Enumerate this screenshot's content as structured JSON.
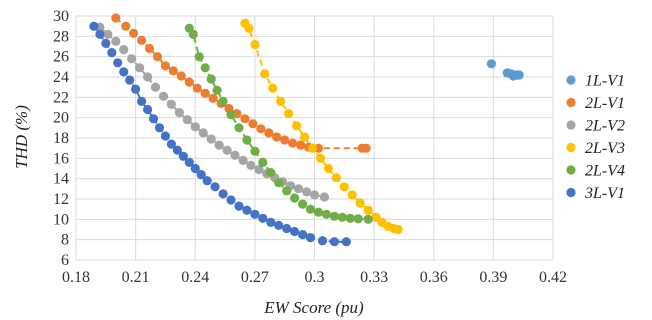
{
  "chart_data": {
    "type": "scatter",
    "title": "",
    "xlabel": "EW Score (pu)",
    "ylabel": "THD (%)",
    "xlim": [
      0.18,
      0.42
    ],
    "ylim": [
      6,
      30
    ],
    "xticks": [
      "0.18",
      "0.21",
      "0.24",
      "0.27",
      "0.3",
      "0.33",
      "0.36",
      "0.39",
      "0.42"
    ],
    "yticks": [
      "6",
      "8",
      "10",
      "12",
      "14",
      "16",
      "18",
      "20",
      "22",
      "24",
      "26",
      "28",
      "30"
    ],
    "grid": true,
    "legend_position": "right",
    "series": [
      {
        "name": "1L-V1",
        "color": "#5B9BD5",
        "trend": false,
        "points": [
          [
            0.389,
            25.3
          ],
          [
            0.397,
            24.4
          ],
          [
            0.399,
            24.3
          ],
          [
            0.401,
            24.2
          ],
          [
            0.402,
            24.2
          ],
          [
            0.403,
            24.2
          ],
          [
            0.4,
            24.1
          ]
        ]
      },
      {
        "name": "2L-V1",
        "color": "#ED7D31",
        "trend": true,
        "points": [
          [
            0.2,
            29.8
          ],
          [
            0.205,
            29.0
          ],
          [
            0.209,
            28.3
          ],
          [
            0.213,
            27.6
          ],
          [
            0.217,
            26.8
          ],
          [
            0.221,
            26.0
          ],
          [
            0.225,
            25.1
          ],
          [
            0.229,
            24.6
          ],
          [
            0.233,
            24.1
          ],
          [
            0.237,
            23.5
          ],
          [
            0.241,
            22.9
          ],
          [
            0.245,
            22.4
          ],
          [
            0.249,
            21.9
          ],
          [
            0.253,
            21.4
          ],
          [
            0.257,
            20.9
          ],
          [
            0.261,
            20.4
          ],
          [
            0.265,
            19.9
          ],
          [
            0.269,
            19.4
          ],
          [
            0.273,
            18.9
          ],
          [
            0.277,
            18.5
          ],
          [
            0.281,
            18.1
          ],
          [
            0.285,
            17.8
          ],
          [
            0.289,
            17.5
          ],
          [
            0.293,
            17.3
          ],
          [
            0.297,
            17.1
          ],
          [
            0.302,
            17.0
          ],
          [
            0.324,
            17.0
          ],
          [
            0.326,
            17.0
          ]
        ]
      },
      {
        "name": "2L-V2",
        "color": "#A5A5A5",
        "trend": true,
        "points": [
          [
            0.192,
            28.9
          ],
          [
            0.196,
            28.2
          ],
          [
            0.2,
            27.5
          ],
          [
            0.204,
            26.7
          ],
          [
            0.208,
            25.8
          ],
          [
            0.212,
            24.9
          ],
          [
            0.216,
            24.0
          ],
          [
            0.22,
            23.0
          ],
          [
            0.224,
            22.1
          ],
          [
            0.228,
            21.3
          ],
          [
            0.232,
            20.5
          ],
          [
            0.236,
            19.8
          ],
          [
            0.24,
            19.1
          ],
          [
            0.244,
            18.5
          ],
          [
            0.248,
            17.9
          ],
          [
            0.252,
            17.3
          ],
          [
            0.256,
            16.8
          ],
          [
            0.26,
            16.3
          ],
          [
            0.264,
            15.8
          ],
          [
            0.268,
            15.3
          ],
          [
            0.272,
            14.9
          ],
          [
            0.276,
            14.5
          ],
          [
            0.28,
            14.1
          ],
          [
            0.284,
            13.7
          ],
          [
            0.288,
            13.3
          ],
          [
            0.292,
            13.0
          ],
          [
            0.296,
            12.7
          ],
          [
            0.3,
            12.4
          ],
          [
            0.305,
            12.2
          ]
        ]
      },
      {
        "name": "2L-V3",
        "color": "#FFC000",
        "trend": true,
        "points": [
          [
            0.265,
            29.3
          ],
          [
            0.267,
            28.8
          ],
          [
            0.27,
            27.2
          ],
          [
            0.275,
            24.3
          ],
          [
            0.279,
            22.9
          ],
          [
            0.283,
            21.6
          ],
          [
            0.287,
            20.4
          ],
          [
            0.291,
            19.2
          ],
          [
            0.295,
            18.1
          ],
          [
            0.299,
            17.0
          ],
          [
            0.303,
            16.0
          ],
          [
            0.307,
            15.0
          ],
          [
            0.311,
            14.1
          ],
          [
            0.315,
            13.2
          ],
          [
            0.319,
            12.4
          ],
          [
            0.323,
            11.6
          ],
          [
            0.327,
            10.9
          ],
          [
            0.331,
            10.2
          ],
          [
            0.334,
            9.7
          ],
          [
            0.337,
            9.3
          ],
          [
            0.34,
            9.1
          ],
          [
            0.342,
            9.0
          ]
        ]
      },
      {
        "name": "2L-V4",
        "color": "#70AD47",
        "trend": true,
        "points": [
          [
            0.237,
            28.8
          ],
          [
            0.239,
            28.2
          ],
          [
            0.242,
            26.0
          ],
          [
            0.245,
            24.9
          ],
          [
            0.248,
            23.8
          ],
          [
            0.251,
            22.7
          ],
          [
            0.254,
            21.6
          ],
          [
            0.258,
            20.3
          ],
          [
            0.262,
            19.0
          ],
          [
            0.266,
            17.8
          ],
          [
            0.27,
            16.7
          ],
          [
            0.274,
            15.6
          ],
          [
            0.278,
            14.6
          ],
          [
            0.282,
            13.6
          ],
          [
            0.286,
            12.8
          ],
          [
            0.29,
            12.1
          ],
          [
            0.294,
            11.5
          ],
          [
            0.298,
            11.0
          ],
          [
            0.302,
            10.7
          ],
          [
            0.306,
            10.5
          ],
          [
            0.31,
            10.3
          ],
          [
            0.314,
            10.2
          ],
          [
            0.318,
            10.1
          ],
          [
            0.322,
            10.05
          ],
          [
            0.327,
            10.0
          ]
        ]
      },
      {
        "name": "3L-V1",
        "color": "#4472C4",
        "trend": true,
        "points": [
          [
            0.189,
            29.0
          ],
          [
            0.192,
            28.2
          ],
          [
            0.195,
            27.3
          ],
          [
            0.198,
            26.4
          ],
          [
            0.201,
            25.4
          ],
          [
            0.204,
            24.5
          ],
          [
            0.207,
            23.7
          ],
          [
            0.21,
            22.8
          ],
          [
            0.213,
            21.6
          ],
          [
            0.216,
            20.8
          ],
          [
            0.219,
            19.9
          ],
          [
            0.222,
            19.0
          ],
          [
            0.225,
            18.2
          ],
          [
            0.228,
            17.4
          ],
          [
            0.231,
            16.8
          ],
          [
            0.234,
            16.2
          ],
          [
            0.237,
            15.6
          ],
          [
            0.24,
            15.0
          ],
          [
            0.243,
            14.4
          ],
          [
            0.246,
            13.8
          ],
          [
            0.25,
            13.2
          ],
          [
            0.254,
            12.5
          ],
          [
            0.258,
            11.9
          ],
          [
            0.262,
            11.3
          ],
          [
            0.266,
            10.9
          ],
          [
            0.27,
            10.5
          ],
          [
            0.274,
            10.1
          ],
          [
            0.278,
            9.7
          ],
          [
            0.282,
            9.4
          ],
          [
            0.286,
            9.1
          ],
          [
            0.29,
            8.8
          ],
          [
            0.294,
            8.5
          ],
          [
            0.298,
            8.2
          ],
          [
            0.304,
            7.9
          ],
          [
            0.31,
            7.8
          ],
          [
            0.316,
            7.8
          ]
        ]
      }
    ]
  }
}
